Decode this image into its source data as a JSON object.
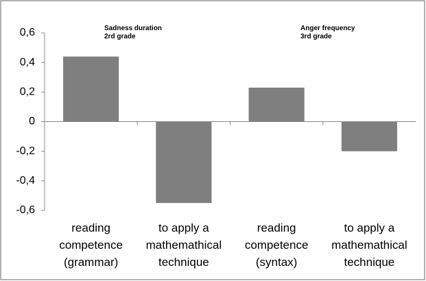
{
  "chart_data": {
    "type": "bar",
    "categories": [
      "reading\ncompetence\n(grammar)",
      "to apply a\nmathemathical\ntechnique",
      "reading\ncompetence\n(syntax)",
      "to apply a\nmathemathical\ntechnique"
    ],
    "values": [
      0.44,
      -0.55,
      0.23,
      -0.2
    ],
    "color": "#7f7f7f",
    "ylim": [
      -0.6,
      0.6
    ],
    "yticks": [
      {
        "value": -0.6,
        "label": "-0,6"
      },
      {
        "value": -0.4,
        "label": "-0,4"
      },
      {
        "value": -0.2,
        "label": "-0,2"
      },
      0,
      {
        "value": 0.2,
        "label": "0,2"
      },
      {
        "value": 0.4,
        "label": "0,4"
      },
      {
        "value": 0.6,
        "label": "0,6"
      }
    ],
    "annotations": [
      {
        "text": "Sadness duration\n2rd grade"
      },
      {
        "text": "Anger frequency\n3rd grade"
      }
    ]
  }
}
